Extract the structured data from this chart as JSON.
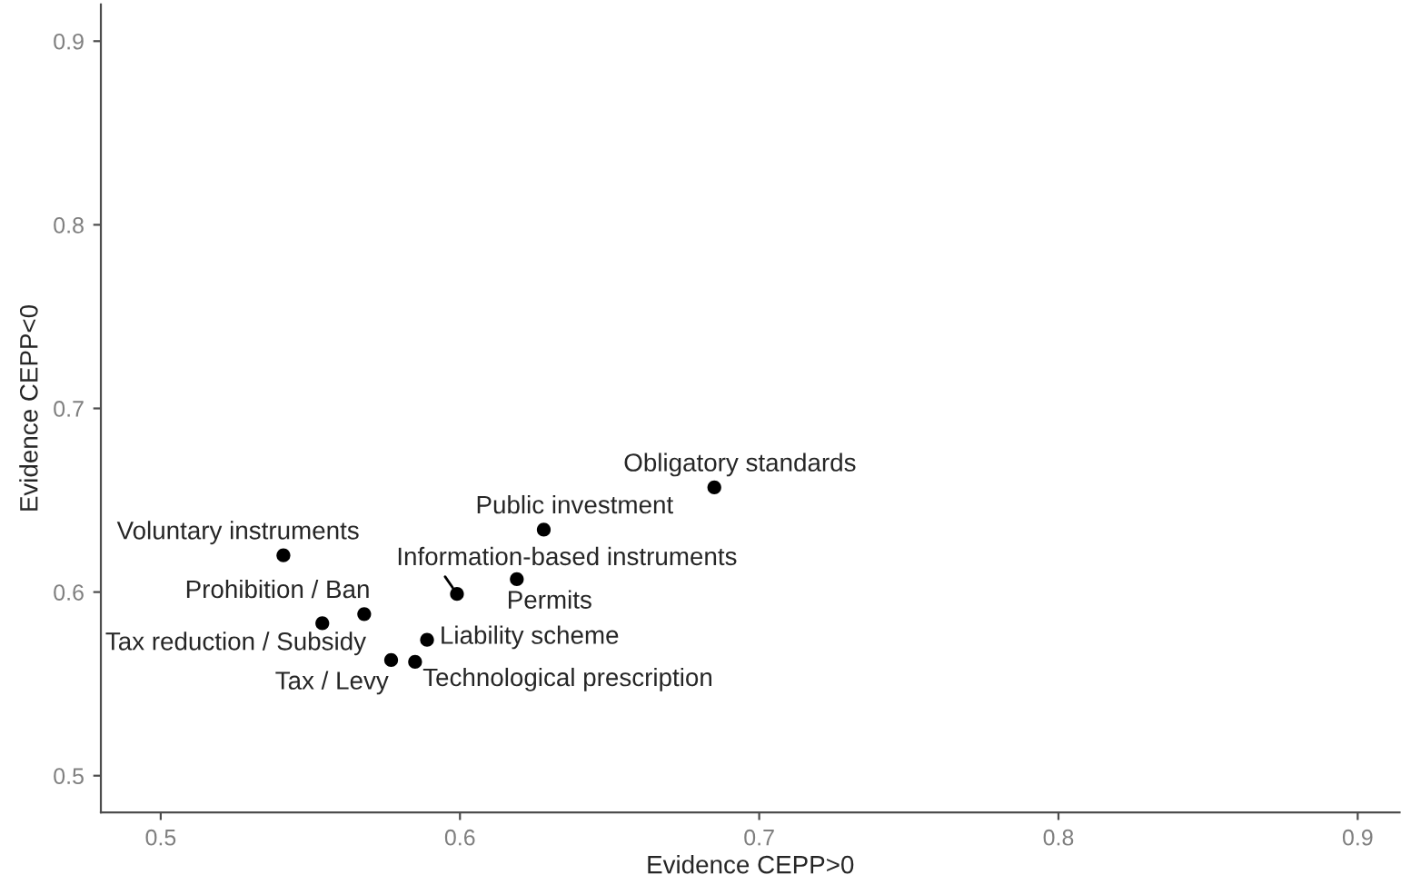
{
  "chart_data": {
    "type": "scatter",
    "xlabel": "Evidence CEPP>0",
    "ylabel": "Evidence CEPP<0",
    "x": [
      0.685,
      0.628,
      0.541,
      0.599,
      0.619,
      0.568,
      0.554,
      0.589,
      0.577,
      0.585
    ],
    "series": [
      {
        "color": "#000000",
        "values": [
          0.657,
          0.634,
          0.62,
          0.599,
          0.607,
          0.588,
          0.583,
          0.574,
          0.563,
          0.562
        ]
      }
    ],
    "annotations": [
      {
        "text": "Obligatory standards",
        "x": 0.685,
        "y": 0.657
      },
      {
        "text": "Public investment",
        "x": 0.628,
        "y": 0.634
      },
      {
        "text": "Voluntary instruments",
        "x": 0.541,
        "y": 0.62
      },
      {
        "text": "Information-based instruments",
        "x": 0.599,
        "y": 0.599
      },
      {
        "text": "Permits",
        "x": 0.619,
        "y": 0.607
      },
      {
        "text": "Prohibition / Ban",
        "x": 0.568,
        "y": 0.588
      },
      {
        "text": "Tax reduction / Subsidy",
        "x": 0.554,
        "y": 0.583
      },
      {
        "text": "Liability scheme",
        "x": 0.589,
        "y": 0.574
      },
      {
        "text": "Tax / Levy",
        "x": 0.577,
        "y": 0.563
      },
      {
        "text": "Technological prescription",
        "x": 0.585,
        "y": 0.562
      }
    ],
    "xlim": [
      0.48,
      0.914
    ],
    "ylim": [
      0.48,
      0.92
    ],
    "xticks": [
      0.5,
      0.6,
      0.7,
      0.8,
      0.9
    ],
    "yticks": [
      0.5,
      0.6,
      0.7,
      0.8,
      0.9
    ],
    "grid": false,
    "marker": "circle"
  }
}
